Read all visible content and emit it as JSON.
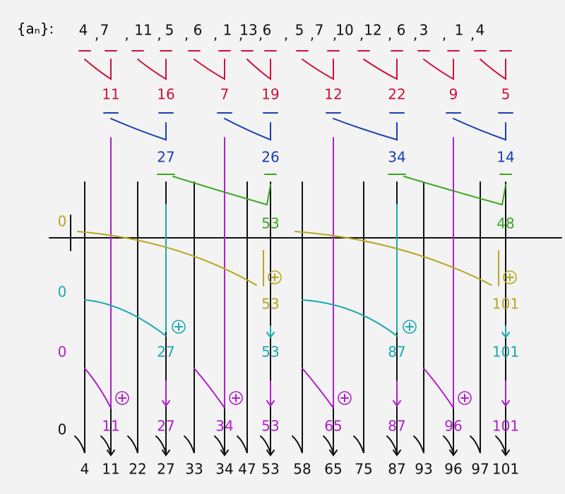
{
  "label": "{aₙ}:",
  "sequence": [
    "4",
    "7",
    "11",
    "5",
    "6",
    "1",
    "13",
    "6",
    "5",
    "7",
    "10",
    "12",
    "6",
    "3",
    "1",
    "4"
  ],
  "separator": ",",
  "level1": [
    "11",
    "16",
    "7",
    "19",
    "12",
    "22",
    "9",
    "5"
  ],
  "level2": [
    "27",
    "26",
    "34",
    "14"
  ],
  "level3": [
    "53",
    "48"
  ],
  "zero_labels": [
    "0",
    "0",
    "0",
    "0"
  ],
  "downsweep_1": [
    "53",
    "101"
  ],
  "downsweep_2": [
    "27",
    "53",
    "87",
    "101"
  ],
  "downsweep_3": [
    "11",
    "27",
    "34",
    "53",
    "65",
    "87",
    "96",
    "101"
  ],
  "result": [
    "4",
    "11",
    "22",
    "27",
    "33",
    "34",
    "47",
    "53",
    "58",
    "65",
    "75",
    "87",
    "93",
    "96",
    "97",
    "101"
  ]
}
